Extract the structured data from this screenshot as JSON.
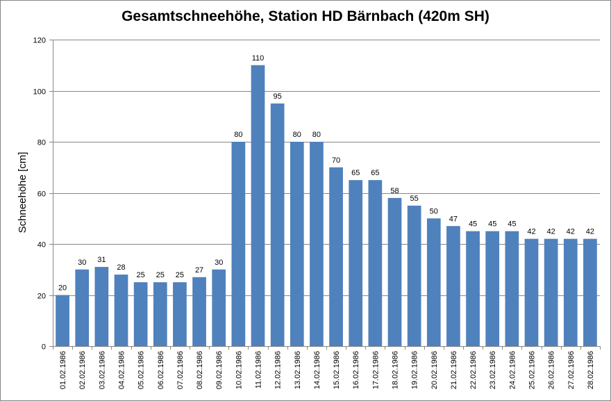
{
  "chart_data": {
    "type": "bar",
    "title": "Gesamtschneehöhe, Station HD Bärnbach (420m SH)",
    "xlabel": "",
    "ylabel": "Schneehöhe [cm]",
    "ylim": [
      0,
      120
    ],
    "yticks": [
      0,
      20,
      40,
      60,
      80,
      100,
      120
    ],
    "grid": true,
    "legend": "none",
    "bar_color": "#4f81bd",
    "categories": [
      "01.02.1986",
      "02.02.1986",
      "03.02.1986",
      "04.02.1986",
      "05.02.1986",
      "06.02.1986",
      "07.02.1986",
      "08.02.1986",
      "09.02.1986",
      "10.02.1986",
      "11.02.1986",
      "12.02.1986",
      "13.02.1986",
      "14.02.1986",
      "15.02.1986",
      "16.02.1986",
      "17.02.1986",
      "18.02.1986",
      "19.02.1986",
      "20.02.1986",
      "21.02.1986",
      "22.02.1986",
      "23.02.1986",
      "24.02.1986",
      "25.02.1986",
      "26.02.1986",
      "27.02.1986",
      "28.02.1986"
    ],
    "values": [
      20,
      30,
      31,
      28,
      25,
      25,
      25,
      27,
      30,
      80,
      110,
      95,
      80,
      80,
      70,
      65,
      65,
      58,
      55,
      50,
      47,
      45,
      45,
      45,
      42,
      42,
      42,
      42
    ]
  }
}
